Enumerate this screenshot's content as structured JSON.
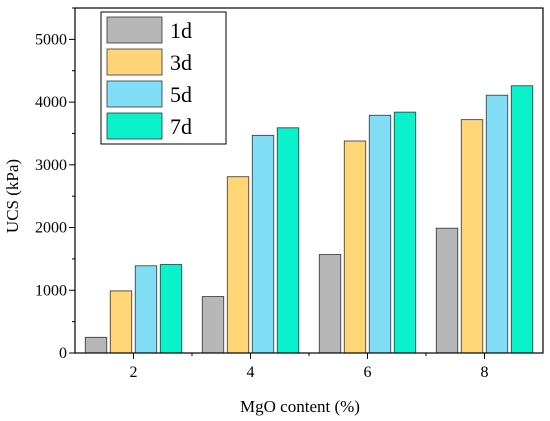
{
  "chart_data": {
    "type": "bar",
    "categories": [
      "2",
      "4",
      "6",
      "8"
    ],
    "series": [
      {
        "name": "1d",
        "values": [
          250,
          900,
          1570,
          1990
        ]
      },
      {
        "name": "3d",
        "values": [
          990,
          2810,
          3380,
          3720
        ]
      },
      {
        "name": "5d",
        "values": [
          1390,
          3470,
          3790,
          4110
        ]
      },
      {
        "name": "7d",
        "values": [
          1410,
          3590,
          3840,
          4260
        ]
      }
    ],
    "colors": [
      "#b7b7b7",
      "#ffd578",
      "#82def7",
      "#0af2cc"
    ],
    "title": "",
    "xlabel": "MgO content (%)",
    "ylabel": "UCS (kPa)",
    "ylim": [
      0,
      5500
    ],
    "yticks": [
      0,
      1000,
      2000,
      3000,
      4000,
      5000
    ],
    "grid": false,
    "legend_position": "top-left"
  }
}
